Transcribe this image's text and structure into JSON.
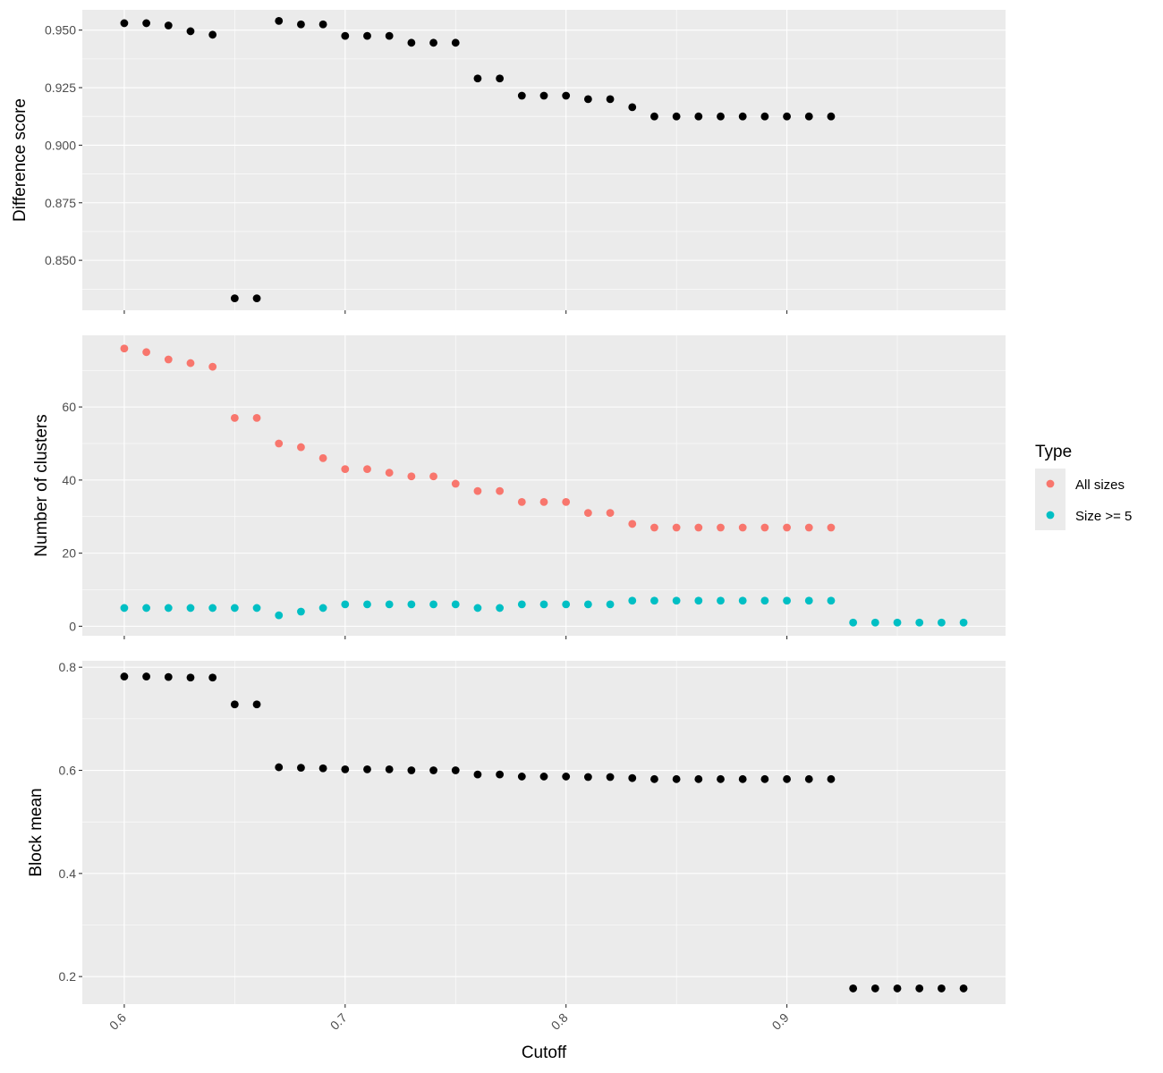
{
  "chart_data": {
    "type": "scatter",
    "x_label": "Cutoff",
    "x_range": [
      0.581,
      0.999
    ],
    "x_ticks": [
      0.6,
      0.7,
      0.8,
      0.9
    ],
    "x_tick_labels": [
      "0.6",
      "0.7",
      "0.8",
      "0.9"
    ],
    "colors": {
      "panel_bg": "#ebebeb",
      "grid": "#ffffff",
      "black_points": "#000000",
      "all_sizes": "#f8766d",
      "size_ge_5": "#00bfc4"
    },
    "legend": {
      "title": "Type",
      "placement": "right",
      "entries": [
        {
          "label": "All sizes",
          "series": "All sizes"
        },
        {
          "label": "Size >= 5",
          "series": "Size >= 5"
        }
      ]
    },
    "panels": [
      {
        "id": "difference",
        "y_label": "Difference score",
        "y_range": [
          0.8283,
          0.9588
        ],
        "y_ticks": [
          0.85,
          0.875,
          0.9,
          0.925,
          0.95
        ],
        "y_tick_labels": [
          "0.850",
          "0.875",
          "0.900",
          "0.925",
          "0.950"
        ],
        "series": [
          {
            "color": "black_points",
            "x": [
              0.6,
              0.61,
              0.62,
              0.63,
              0.64,
              0.65,
              0.66,
              0.67,
              0.68,
              0.69,
              0.7,
              0.71,
              0.72,
              0.73,
              0.74,
              0.75,
              0.76,
              0.77,
              0.78,
              0.79,
              0.8,
              0.81,
              0.82,
              0.83,
              0.84,
              0.85,
              0.86,
              0.87,
              0.88,
              0.89,
              0.9,
              0.91,
              0.92
            ],
            "y": [
              0.953,
              0.953,
              0.952,
              0.9495,
              0.948,
              0.8335,
              0.8335,
              0.954,
              0.9525,
              0.9525,
              0.9475,
              0.9475,
              0.9475,
              0.9445,
              0.9445,
              0.9445,
              0.929,
              0.929,
              0.9215,
              0.9215,
              0.9215,
              0.92,
              0.92,
              0.9165,
              0.9125,
              0.9125,
              0.9125,
              0.9125,
              0.9125,
              0.9125,
              0.9125,
              0.9125,
              0.9125
            ]
          }
        ]
      },
      {
        "id": "clusters",
        "y_label": "Number of clusters",
        "y_range": [
          -2.6,
          79.6
        ],
        "y_ticks": [
          0,
          20,
          40,
          60
        ],
        "y_tick_labels": [
          "0",
          "20",
          "40",
          "60"
        ],
        "series": [
          {
            "name": "All sizes",
            "color": "all_sizes",
            "x": [
              0.6,
              0.61,
              0.62,
              0.63,
              0.64,
              0.65,
              0.66,
              0.67,
              0.68,
              0.69,
              0.7,
              0.71,
              0.72,
              0.73,
              0.74,
              0.75,
              0.76,
              0.77,
              0.78,
              0.79,
              0.8,
              0.81,
              0.82,
              0.83,
              0.84,
              0.85,
              0.86,
              0.87,
              0.88,
              0.89,
              0.9,
              0.91,
              0.92
            ],
            "y": [
              76,
              75,
              73,
              72,
              71,
              57,
              57,
              50,
              49,
              46,
              43,
              43,
              42,
              41,
              41,
              39,
              37,
              37,
              34,
              34,
              34,
              31,
              31,
              28,
              27,
              27,
              27,
              27,
              27,
              27,
              27,
              27,
              27
            ]
          },
          {
            "name": "Size >= 5",
            "color": "size_ge_5",
            "x": [
              0.6,
              0.61,
              0.62,
              0.63,
              0.64,
              0.65,
              0.66,
              0.67,
              0.68,
              0.69,
              0.7,
              0.71,
              0.72,
              0.73,
              0.74,
              0.75,
              0.76,
              0.77,
              0.78,
              0.79,
              0.8,
              0.81,
              0.82,
              0.83,
              0.84,
              0.85,
              0.86,
              0.87,
              0.88,
              0.89,
              0.9,
              0.91,
              0.92,
              0.93,
              0.94,
              0.95,
              0.96,
              0.97,
              0.98
            ],
            "y": [
              5,
              5,
              5,
              5,
              5,
              5,
              5,
              3,
              4,
              5,
              6,
              6,
              6,
              6,
              6,
              6,
              5,
              5,
              6,
              6,
              6,
              6,
              6,
              7,
              7,
              7,
              7,
              7,
              7,
              7,
              7,
              7,
              7,
              1,
              1,
              1,
              1,
              1,
              1
            ]
          }
        ]
      },
      {
        "id": "block",
        "y_label": "Block mean",
        "y_range": [
          0.1465,
          0.8125
        ],
        "y_ticks": [
          0.2,
          0.4,
          0.6,
          0.8
        ],
        "y_tick_labels": [
          "0.2",
          "0.4",
          "0.6",
          "0.8"
        ],
        "series": [
          {
            "color": "black_points",
            "x": [
              0.6,
              0.61,
              0.62,
              0.63,
              0.64,
              0.65,
              0.66,
              0.67,
              0.68,
              0.69,
              0.7,
              0.71,
              0.72,
              0.73,
              0.74,
              0.75,
              0.76,
              0.77,
              0.78,
              0.79,
              0.8,
              0.81,
              0.82,
              0.83,
              0.84,
              0.85,
              0.86,
              0.87,
              0.88,
              0.89,
              0.9,
              0.91,
              0.92,
              0.93,
              0.94,
              0.95,
              0.96,
              0.97,
              0.98
            ],
            "y": [
              0.782,
              0.782,
              0.781,
              0.78,
              0.78,
              0.728,
              0.728,
              0.606,
              0.605,
              0.604,
              0.602,
              0.602,
              0.602,
              0.6,
              0.6,
              0.6,
              0.592,
              0.592,
              0.588,
              0.588,
              0.588,
              0.587,
              0.587,
              0.585,
              0.583,
              0.583,
              0.583,
              0.583,
              0.583,
              0.583,
              0.583,
              0.583,
              0.583,
              0.177,
              0.177,
              0.177,
              0.177,
              0.177,
              0.177
            ]
          }
        ]
      }
    ]
  }
}
